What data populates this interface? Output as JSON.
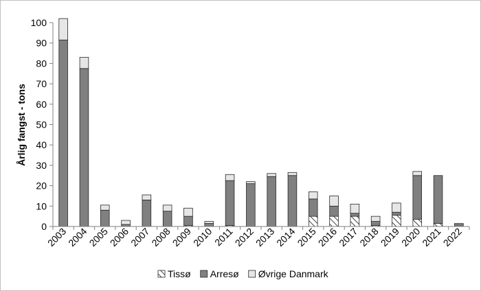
{
  "chart_data": {
    "type": "bar",
    "stacked": true,
    "title": "",
    "xlabel": "",
    "ylabel": "Årlig fangst - tons",
    "ylim": [
      0,
      100
    ],
    "yticks": [
      0,
      10,
      20,
      30,
      40,
      50,
      60,
      70,
      80,
      90,
      100
    ],
    "categories": [
      "2003",
      "2004",
      "2005",
      "2006",
      "2007",
      "2008",
      "2009",
      "2010",
      "2011",
      "2012",
      "2013",
      "2014",
      "2015",
      "2016",
      "2017",
      "2018",
      "2019",
      "2020",
      "2021",
      "2022"
    ],
    "series": [
      {
        "name": "Tissø",
        "color": "#ffffff",
        "pattern": "diagonal-hatch",
        "values": [
          0,
          0,
          0,
          0,
          0,
          0,
          0.5,
          0,
          0.5,
          0,
          0,
          0,
          5,
          5,
          5,
          0.5,
          5.5,
          3.5,
          1.5,
          0
        ]
      },
      {
        "name": "Arresø",
        "color": "#808080",
        "values": [
          91.5,
          77.5,
          8,
          1,
          13,
          7.5,
          4.5,
          1.5,
          22,
          21,
          24.5,
          25,
          8.5,
          5,
          1.5,
          2,
          1.5,
          21.5,
          23.5,
          1
        ]
      },
      {
        "name": "Øvrige Danmark",
        "color": "#e6e6e6",
        "values": [
          10.5,
          5.5,
          2.5,
          2,
          2.5,
          3,
          4,
          1,
          3,
          1,
          1.5,
          1.5,
          3.5,
          5,
          4.5,
          2.5,
          4.5,
          2,
          0,
          0.5
        ]
      }
    ],
    "legend_position": "bottom-center",
    "grid": false
  }
}
